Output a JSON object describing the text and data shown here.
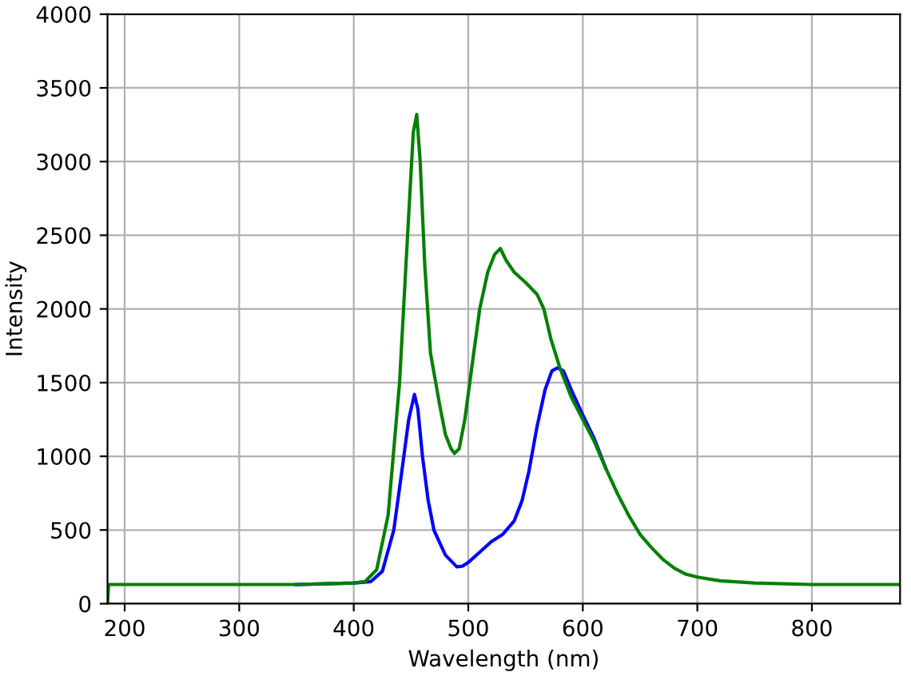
{
  "chart_data": {
    "type": "line",
    "xlabel": "Wavelength (nm)",
    "ylabel": "Intensity",
    "xlim": [
      185,
      877
    ],
    "ylim": [
      0,
      4000
    ],
    "xticks": [
      200,
      300,
      400,
      500,
      600,
      700,
      800
    ],
    "yticks": [
      0,
      500,
      1000,
      1500,
      2000,
      2500,
      3000,
      3500,
      4000
    ],
    "grid": true,
    "marker": "none",
    "line_style": "solid",
    "series": [
      {
        "color": "#0000ff",
        "x": [
          350,
          400,
          415,
          425,
          435,
          442,
          448,
          453,
          456,
          460,
          465,
          470,
          480,
          490,
          495,
          500,
          510,
          520,
          530,
          540,
          547,
          553,
          560,
          567,
          573,
          578,
          583,
          590,
          600,
          610,
          620
        ],
        "values": [
          130,
          140,
          150,
          220,
          500,
          900,
          1250,
          1420,
          1320,
          1000,
          700,
          500,
          330,
          250,
          255,
          280,
          350,
          420,
          470,
          560,
          700,
          900,
          1200,
          1450,
          1580,
          1600,
          1580,
          1450,
          1280,
          1120,
          920
        ]
      },
      {
        "color": "#008000",
        "x": [
          185,
          186,
          250,
          300,
          350,
          400,
          410,
          420,
          430,
          440,
          447,
          452,
          455,
          458,
          462,
          467,
          475,
          480,
          485,
          488,
          492,
          497,
          503,
          510,
          517,
          523,
          528,
          533,
          540,
          550,
          560,
          566,
          572,
          580,
          590,
          600,
          610,
          620,
          630,
          640,
          650,
          660,
          670,
          680,
          690,
          700,
          720,
          750,
          800,
          877
        ],
        "values": [
          0,
          130,
          130,
          130,
          130,
          140,
          150,
          230,
          600,
          1500,
          2500,
          3200,
          3320,
          3000,
          2300,
          1700,
          1350,
          1150,
          1050,
          1020,
          1050,
          1250,
          1600,
          2000,
          2250,
          2370,
          2410,
          2330,
          2250,
          2180,
          2100,
          2000,
          1800,
          1600,
          1400,
          1250,
          1100,
          920,
          750,
          600,
          470,
          380,
          300,
          240,
          200,
          180,
          155,
          140,
          130,
          130
        ]
      }
    ]
  }
}
